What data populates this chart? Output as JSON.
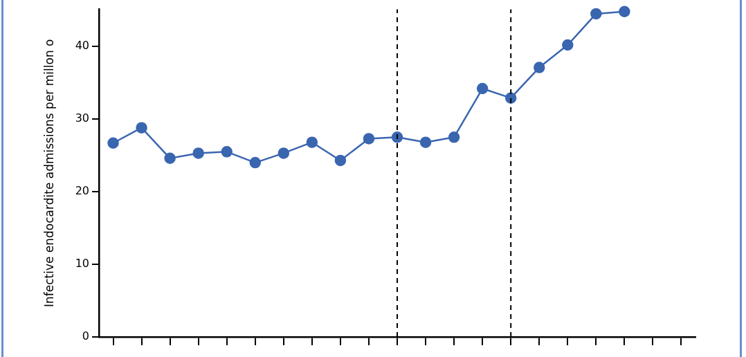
{
  "chart_data": {
    "type": "line",
    "ylabel": "Infective endocardite admissions per millon o",
    "categories": [
      null,
      null,
      null,
      null,
      null,
      null,
      null,
      null,
      null,
      null,
      null,
      null,
      null,
      null,
      null,
      null,
      null,
      null,
      null,
      null,
      null
    ],
    "series": [
      {
        "color": "#3a66b0",
        "values": [
          26.7,
          28.8,
          24.6,
          25.3,
          25.5,
          24.0,
          25.3,
          26.8,
          24.3,
          27.3,
          27.5,
          26.8,
          27.5,
          34.2,
          32.9,
          37.1,
          40.2,
          44.5,
          44.8,
          null,
          null
        ]
      }
    ],
    "ylim": [
      0,
      45.1
    ],
    "yticks": [
      0,
      10,
      20,
      30,
      40
    ],
    "marker": "circle",
    "line_style": "solid",
    "grid": false,
    "legend": false
  }
}
